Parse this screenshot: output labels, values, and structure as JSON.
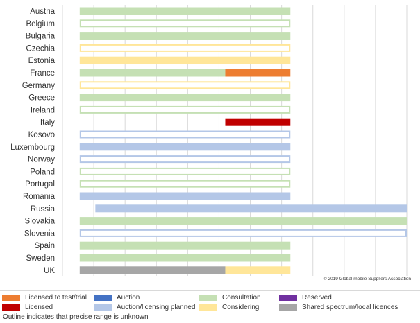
{
  "colors": {
    "grid": "#d9d9d9",
    "licensed_test_trial": "#ed7d31",
    "licensed": "#c00000",
    "auction": "#4472c4",
    "auction_planned": "#b4c7e7",
    "consultation": "#c5e0b4",
    "considering": "#ffe699",
    "reserved": "#7030a0",
    "shared": "#a6a6a6"
  },
  "chart_data": {
    "type": "bar",
    "orientation": "horizontal",
    "x_axis": {
      "tick_labels_shown": false,
      "gridlines": 11,
      "lim": [
        0,
        11
      ]
    },
    "grid": true,
    "categories": [
      "Austria",
      "Belgium",
      "Bulgaria",
      "Czechia",
      "Estonia",
      "France",
      "Germany",
      "Greece",
      "Ireland",
      "Italy",
      "Kosovo",
      "Luxembourg",
      "Norway",
      "Poland",
      "Portugal",
      "Romania",
      "Russia",
      "Slovakia",
      "Slovenia",
      "Spain",
      "Sweden",
      "UK"
    ],
    "rows": [
      {
        "country": "Austria",
        "segments": [
          {
            "start": 0.55,
            "end": 7.28,
            "status": "consultation",
            "outline": false
          }
        ]
      },
      {
        "country": "Belgium",
        "segments": [
          {
            "start": 0.55,
            "end": 7.28,
            "status": "consultation",
            "outline": true
          }
        ]
      },
      {
        "country": "Bulgaria",
        "segments": [
          {
            "start": 0.55,
            "end": 7.28,
            "status": "consultation",
            "outline": false
          }
        ]
      },
      {
        "country": "Czechia",
        "segments": [
          {
            "start": 0.55,
            "end": 7.28,
            "status": "considering",
            "outline": true
          }
        ]
      },
      {
        "country": "Estonia",
        "segments": [
          {
            "start": 0.55,
            "end": 7.28,
            "status": "considering",
            "outline": false
          }
        ]
      },
      {
        "country": "France",
        "segments": [
          {
            "start": 0.55,
            "end": 5.2,
            "status": "consultation",
            "outline": false
          },
          {
            "start": 5.2,
            "end": 7.28,
            "status": "licensed_test_trial",
            "outline": false
          }
        ]
      },
      {
        "country": "Germany",
        "segments": [
          {
            "start": 0.55,
            "end": 7.28,
            "status": "considering",
            "outline": true
          }
        ]
      },
      {
        "country": "Greece",
        "segments": [
          {
            "start": 0.55,
            "end": 7.28,
            "status": "consultation",
            "outline": false
          }
        ]
      },
      {
        "country": "Ireland",
        "segments": [
          {
            "start": 0.55,
            "end": 7.28,
            "status": "consultation",
            "outline": true
          }
        ]
      },
      {
        "country": "Italy",
        "segments": [
          {
            "start": 5.2,
            "end": 7.28,
            "status": "licensed",
            "outline": false
          }
        ]
      },
      {
        "country": "Kosovo",
        "segments": [
          {
            "start": 0.55,
            "end": 7.28,
            "status": "auction_planned",
            "outline": true
          }
        ]
      },
      {
        "country": "Luxembourg",
        "segments": [
          {
            "start": 0.55,
            "end": 7.28,
            "status": "auction_planned",
            "outline": false
          }
        ]
      },
      {
        "country": "Norway",
        "segments": [
          {
            "start": 0.55,
            "end": 7.28,
            "status": "auction_planned",
            "outline": true
          }
        ]
      },
      {
        "country": "Poland",
        "segments": [
          {
            "start": 0.55,
            "end": 7.28,
            "status": "consultation",
            "outline": true
          }
        ]
      },
      {
        "country": "Portugal",
        "segments": [
          {
            "start": 0.55,
            "end": 7.28,
            "status": "consultation",
            "outline": true
          }
        ]
      },
      {
        "country": "Romania",
        "segments": [
          {
            "start": 0.55,
            "end": 7.28,
            "status": "auction_planned",
            "outline": false
          }
        ]
      },
      {
        "country": "Russia",
        "segments": [
          {
            "start": 1.05,
            "end": 11,
            "status": "auction_planned",
            "outline": false
          }
        ]
      },
      {
        "country": "Slovakia",
        "segments": [
          {
            "start": 0.55,
            "end": 11,
            "status": "consultation",
            "outline": false
          }
        ]
      },
      {
        "country": "Slovenia",
        "segments": [
          {
            "start": 0.55,
            "end": 11,
            "status": "auction_planned",
            "outline": true
          }
        ]
      },
      {
        "country": "Spain",
        "segments": [
          {
            "start": 0.55,
            "end": 7.28,
            "status": "consultation",
            "outline": false
          }
        ]
      },
      {
        "country": "Sweden",
        "segments": [
          {
            "start": 0.55,
            "end": 7.28,
            "status": "consultation",
            "outline": false
          }
        ]
      },
      {
        "country": "UK",
        "segments": [
          {
            "start": 0.55,
            "end": 5.2,
            "status": "shared",
            "outline": false
          },
          {
            "start": 5.2,
            "end": 7.28,
            "status": "considering",
            "outline": false
          }
        ]
      }
    ],
    "legend": {
      "position": "bottom",
      "items": [
        {
          "key": "licensed_test_trial",
          "label": "Licensed to test/trial"
        },
        {
          "key": "auction",
          "label": "Auction"
        },
        {
          "key": "consultation",
          "label": "Consultation"
        },
        {
          "key": "reserved",
          "label": "Reserved"
        },
        {
          "key": "licensed",
          "label": "Licensed"
        },
        {
          "key": "auction_planned",
          "label": "Auction/licensing planned"
        },
        {
          "key": "considering",
          "label": "Considering"
        },
        {
          "key": "shared",
          "label": "Shared spectrum/local licences"
        }
      ]
    },
    "annotations": {
      "copyright": "© 2019 Global mobile Suppliers Association",
      "footnote": "Outline indicates that precise range is unknown"
    }
  }
}
